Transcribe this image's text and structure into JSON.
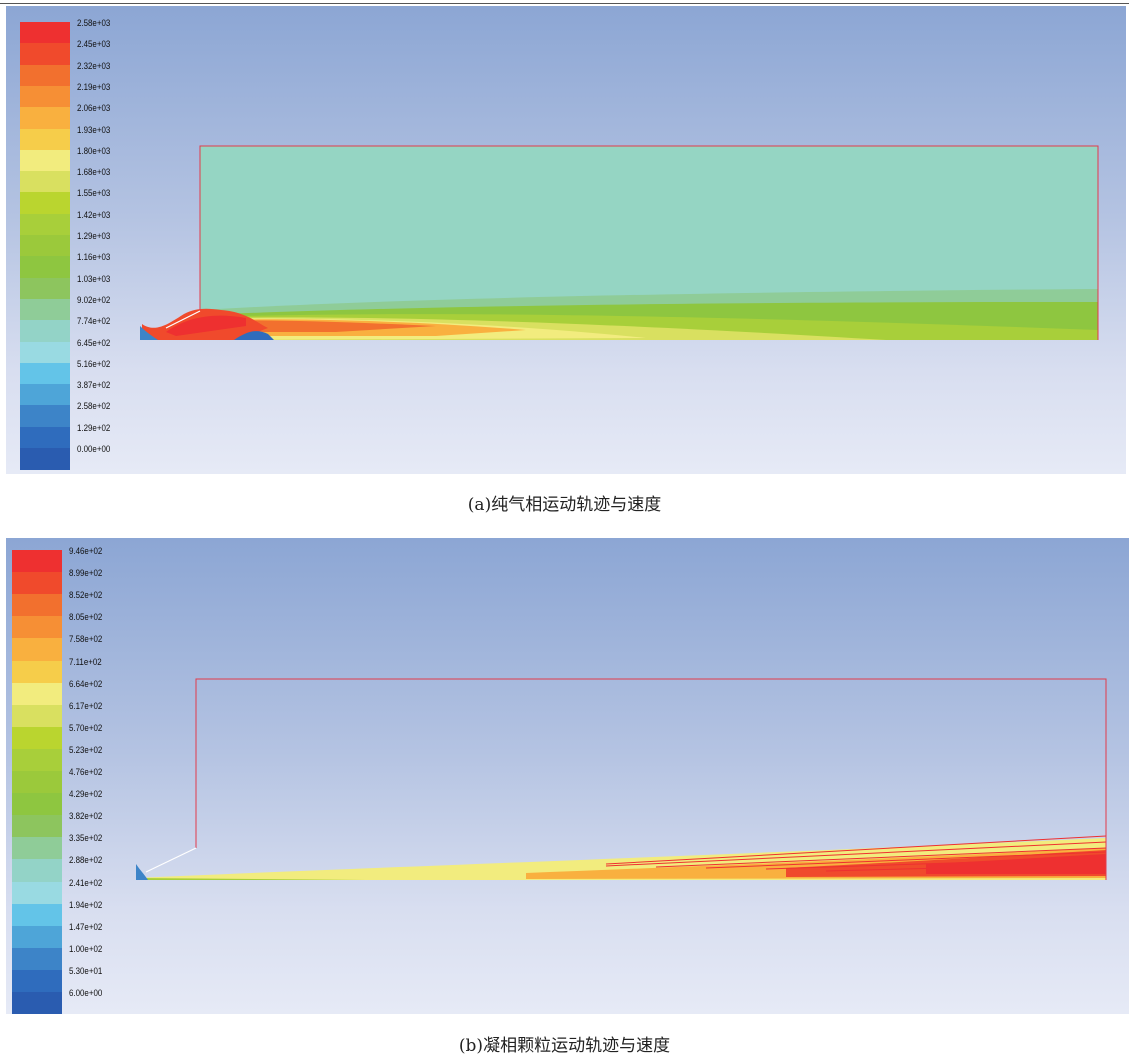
{
  "panel_a": {
    "caption": "(a)纯气相运动轨迹与速度",
    "legend_labels": [
      "2.58e+03",
      "2.45e+03",
      "2.32e+03",
      "2.19e+03",
      "2.06e+03",
      "1.93e+03",
      "1.80e+03",
      "1.68e+03",
      "1.55e+03",
      "1.42e+03",
      "1.29e+03",
      "1.16e+03",
      "1.03e+03",
      "9.02e+02",
      "7.74e+02",
      "6.45e+02",
      "5.16e+02",
      "3.87e+02",
      "2.58e+02",
      "1.29e+02",
      "0.00e+00"
    ]
  },
  "panel_b": {
    "caption": "(b)凝相颗粒运动轨迹与速度",
    "legend_labels": [
      "9.46e+02",
      "8.99e+02",
      "8.52e+02",
      "8.05e+02",
      "7.58e+02",
      "7.11e+02",
      "6.64e+02",
      "6.17e+02",
      "5.70e+02",
      "5.23e+02",
      "4.76e+02",
      "4.29e+02",
      "3.82e+02",
      "3.35e+02",
      "2.88e+02",
      "2.41e+02",
      "1.94e+02",
      "1.47e+02",
      "1.00e+02",
      "5.30e+01",
      "6.00e+00"
    ]
  },
  "colormap": [
    "#ee3030",
    "#f04a2c",
    "#f2702e",
    "#f68f35",
    "#f9b03f",
    "#f6cd4a",
    "#f2ec7e",
    "#d9e060",
    "#bad52f",
    "#a8cf3a",
    "#9bc93b",
    "#8ec640",
    "#8dc55e",
    "#8fcc98",
    "#93d3c7",
    "#99dae2",
    "#63c4e8",
    "#4ea5d8",
    "#3d84c8",
    "#2f6cbd",
    "#2a5cb0"
  ]
}
